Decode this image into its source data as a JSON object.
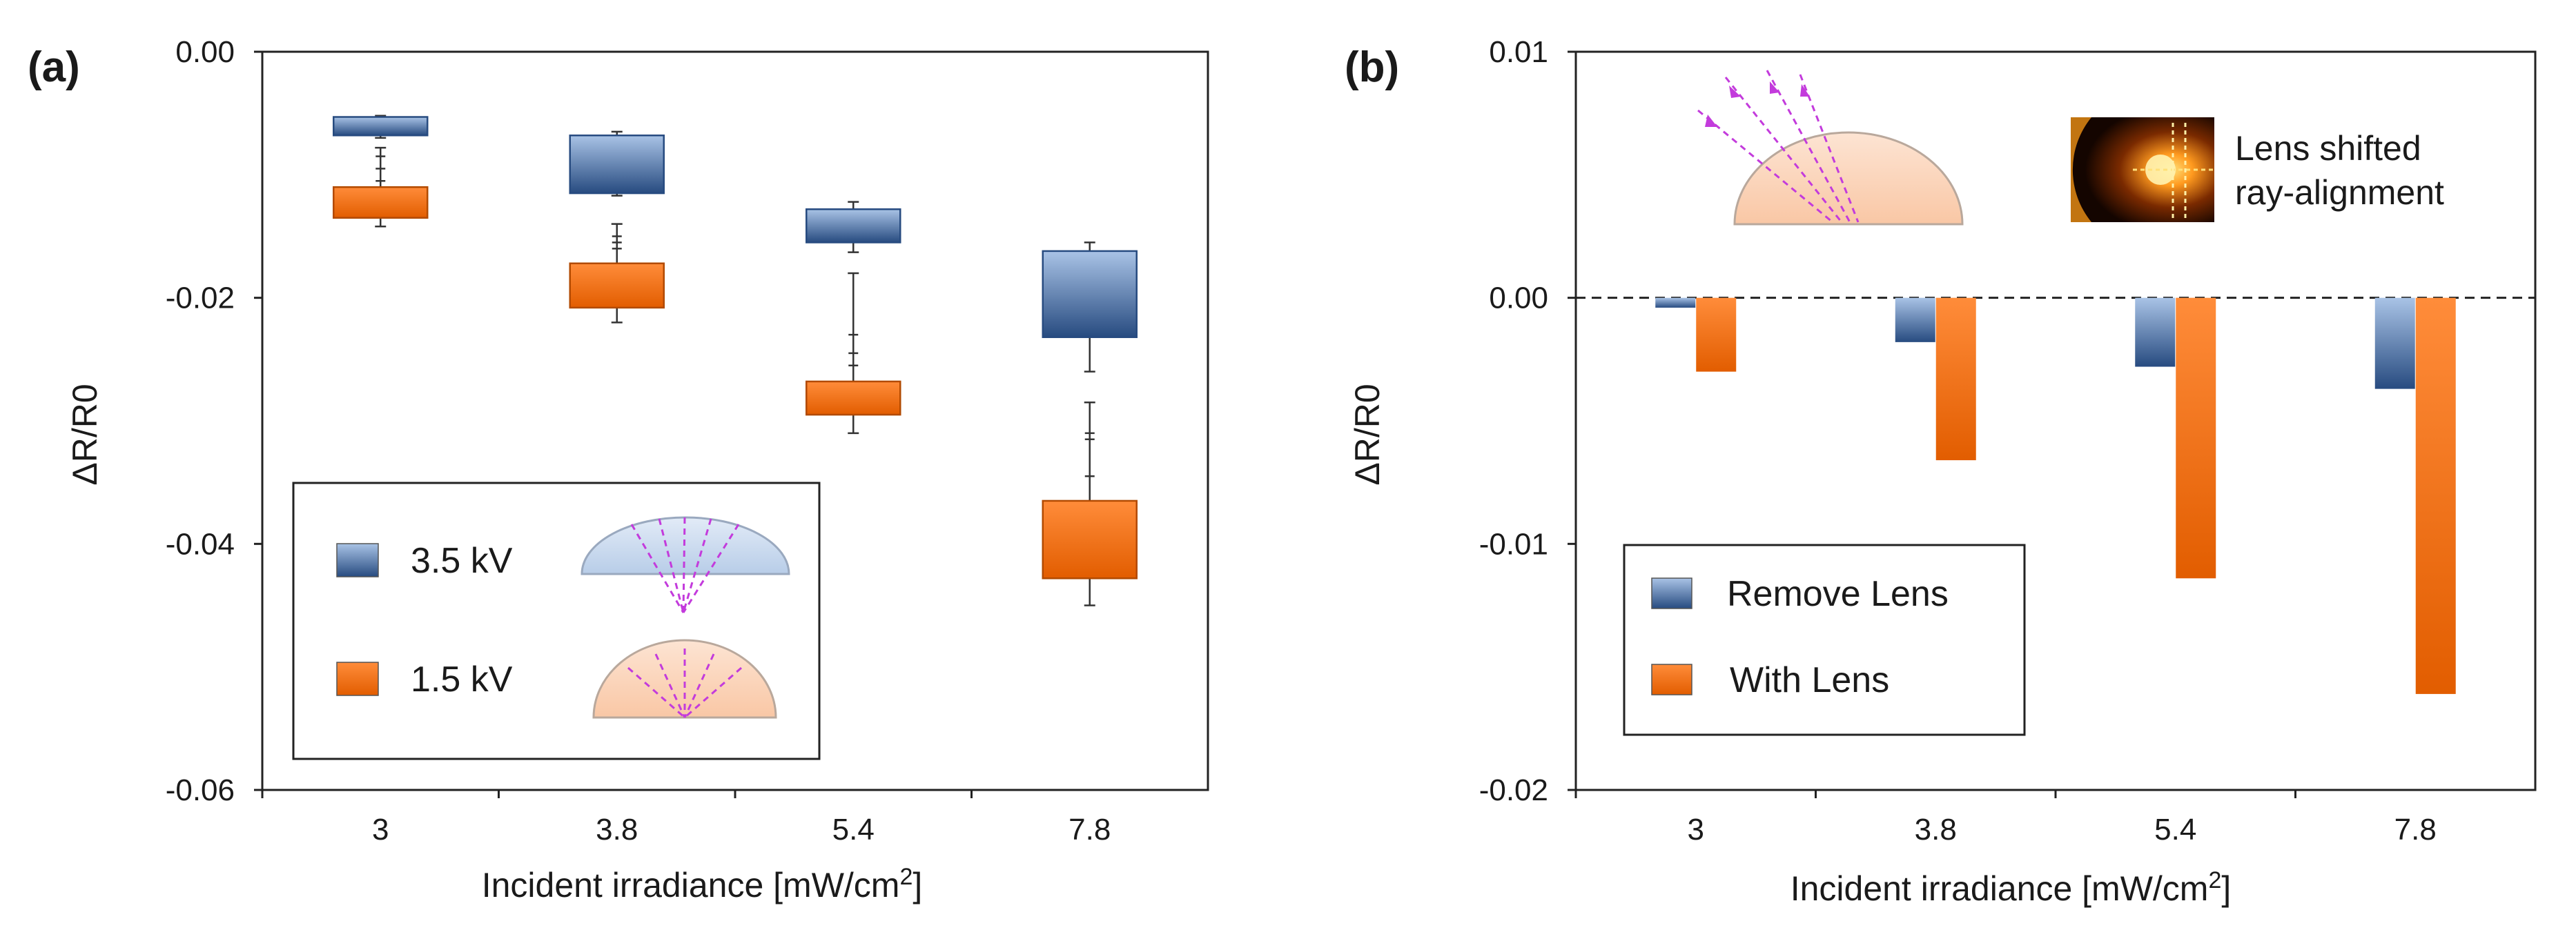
{
  "colors": {
    "blue_top": "#a9c3e6",
    "blue_bottom": "#274b80",
    "orange_top": "#ff8c3a",
    "orange_bottom": "#e25d00",
    "lens_blue": "#b8cde8",
    "lens_orange": "#f9c7a5",
    "ray": "#c33bdc"
  },
  "chart_data": [
    {
      "panel_label": "(a)",
      "type": "box",
      "xlabel_main": "Incident irradiance [mW/cm",
      "xlabel_sup": "2",
      "xlabel_end": "]",
      "ylabel": "ΔR/R0",
      "ylim": [
        -0.06,
        0.0
      ],
      "yticks": [
        0.0,
        -0.02,
        -0.04,
        -0.06
      ],
      "ytick_labels": [
        "0.00",
        "-0.02",
        "-0.04",
        "-0.06"
      ],
      "categories": [
        "3",
        "3.8",
        "5.4",
        "7.8"
      ],
      "legend_placement": "bottom-left",
      "series": [
        {
          "name": "3.5 kV",
          "color_key": "blue",
          "boxes": [
            {
              "whisker_high": -0.0052,
              "q3": -0.0053,
              "q1": -0.0068,
              "whisker_low": -0.007
            },
            {
              "whisker_high": -0.0065,
              "q3": -0.0068,
              "q1": -0.0115,
              "whisker_low": -0.0117
            },
            {
              "whisker_high": -0.0122,
              "q3": -0.0128,
              "q1": -0.0155,
              "whisker_low": -0.0163
            },
            {
              "whisker_high": -0.0155,
              "q3": -0.0162,
              "q1": -0.0232,
              "whisker_low": -0.026
            }
          ],
          "outliers": [
            [],
            [],
            [],
            []
          ]
        },
        {
          "name": "1.5 kV",
          "color_key": "orange",
          "boxes": [
            {
              "whisker_high": -0.0078,
              "q3": -0.011,
              "q1": -0.0135,
              "whisker_low": -0.0142
            },
            {
              "whisker_high": -0.014,
              "q3": -0.0172,
              "q1": -0.0208,
              "whisker_low": -0.022
            },
            {
              "whisker_high": -0.018,
              "q3": -0.0268,
              "q1": -0.0295,
              "whisker_low": -0.031
            },
            {
              "whisker_high": -0.0285,
              "q3": -0.0365,
              "q1": -0.0428,
              "whisker_low": -0.045
            }
          ],
          "outliers": [
            [
              -0.0085,
              -0.0095,
              -0.0105
            ],
            [
              -0.015,
              -0.0155,
              -0.016
            ],
            [
              -0.023,
              -0.0245,
              -0.0255
            ],
            [
              -0.031,
              -0.0315,
              -0.0345
            ]
          ]
        }
      ]
    },
    {
      "panel_label": "(b)",
      "type": "bar",
      "xlabel_main": "Incident irradiance [mW/cm",
      "xlabel_sup": "2",
      "xlabel_end": "]",
      "ylabel": "ΔR/R0",
      "ylim": [
        -0.02,
        0.01
      ],
      "yticks": [
        0.01,
        0.0,
        -0.01,
        -0.02
      ],
      "ytick_labels": [
        "0.01",
        "0.00",
        "-0.01",
        "-0.02"
      ],
      "categories": [
        "3",
        "3.8",
        "5.4",
        "7.8"
      ],
      "zero_line": "dashed",
      "legend_placement": "bottom-left",
      "series": [
        {
          "name": "Remove Lens",
          "color_key": "blue",
          "values": [
            -0.0004,
            -0.0018,
            -0.0028,
            -0.0037
          ]
        },
        {
          "name": "With Lens",
          "color_key": "orange",
          "values": [
            -0.003,
            -0.0066,
            -0.0114,
            -0.0161
          ]
        }
      ],
      "annotation": [
        "Lens shifted",
        "ray-alignment"
      ]
    }
  ]
}
